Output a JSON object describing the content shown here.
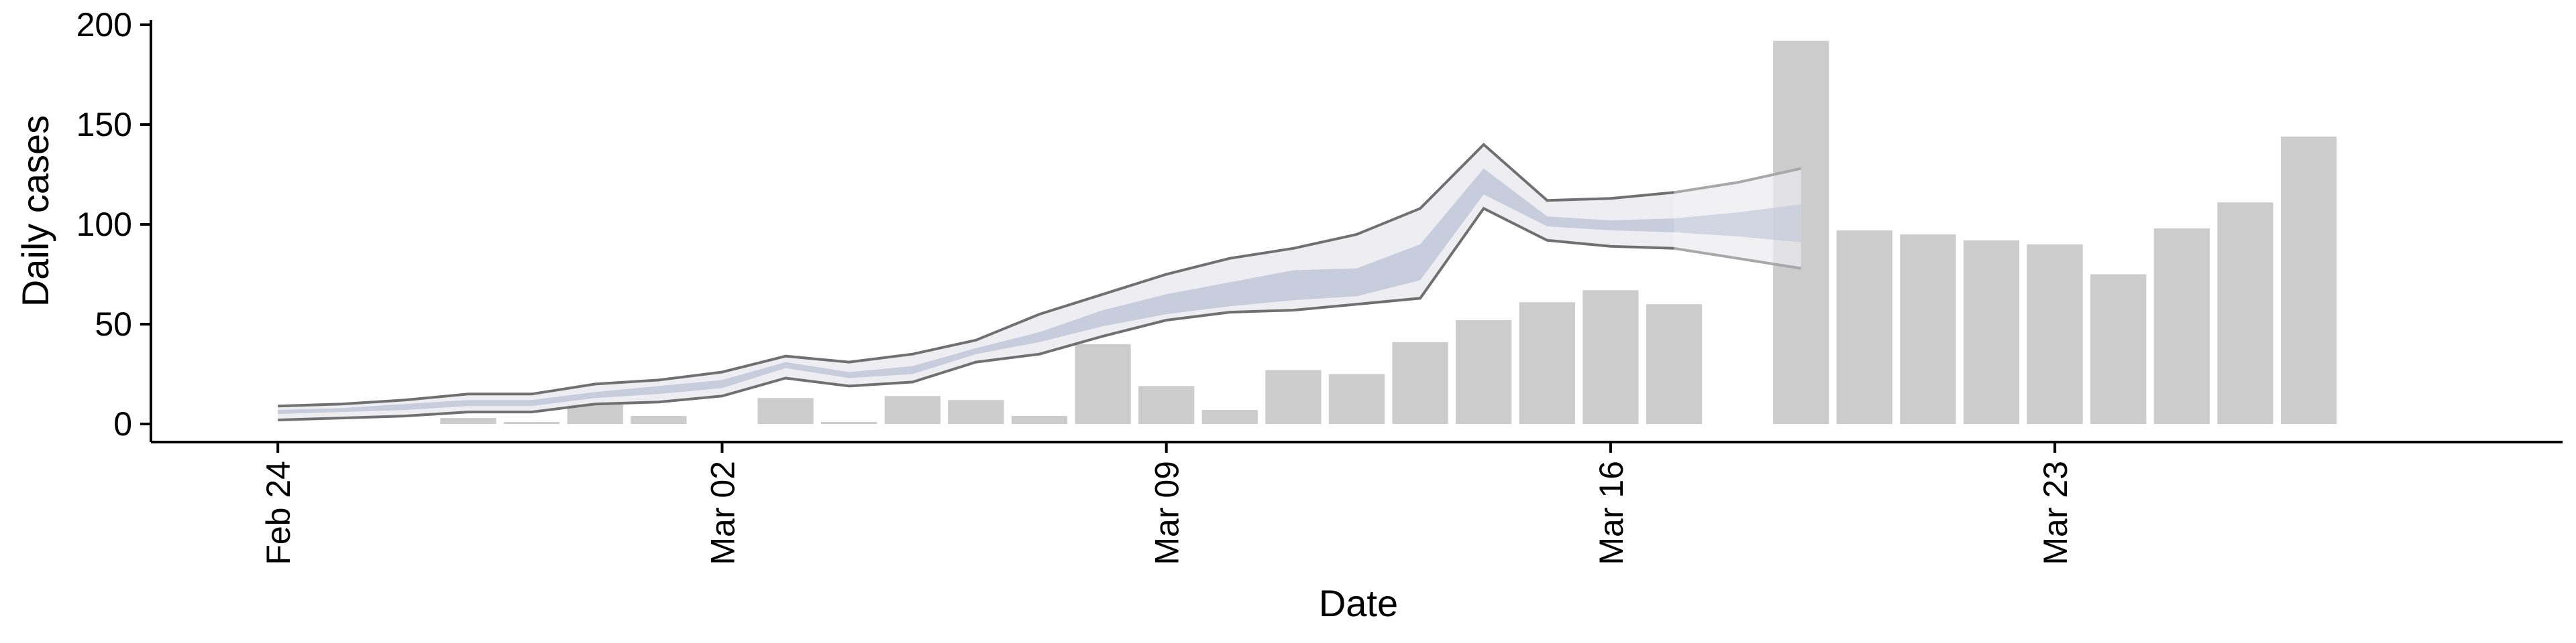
{
  "chart_data": {
    "type": "bar",
    "xlabel": "Date",
    "ylabel": "Daily cases",
    "ylim": [
      0,
      200
    ],
    "yticks": [
      0,
      50,
      100,
      150,
      200
    ],
    "xlim": [
      "2020-02-22",
      "2020-03-31"
    ],
    "xticks": [
      {
        "date": "2020-02-24",
        "label": "Feb 24"
      },
      {
        "date": "2020-03-02",
        "label": "Mar 02"
      },
      {
        "date": "2020-03-09",
        "label": "Mar 09"
      },
      {
        "date": "2020-03-16",
        "label": "Mar 16"
      },
      {
        "date": "2020-03-23",
        "label": "Mar 23"
      }
    ],
    "colors": {
      "bars": "#cccccc",
      "outer_band": "#ebebf0",
      "inner_band": "#c5cadc",
      "band_edge": "#707070",
      "forecast_edge": "#a8a8a8"
    },
    "bars": {
      "dates": [
        "2020-02-27",
        "2020-02-28",
        "2020-02-29",
        "2020-03-01",
        "2020-03-03",
        "2020-03-04",
        "2020-03-05",
        "2020-03-06",
        "2020-03-07",
        "2020-03-08",
        "2020-03-09",
        "2020-03-10",
        "2020-03-11",
        "2020-03-12",
        "2020-03-13",
        "2020-03-14",
        "2020-03-15",
        "2020-03-16",
        "2020-03-17",
        "2020-03-19",
        "2020-03-20",
        "2020-03-21",
        "2020-03-22",
        "2020-03-23",
        "2020-03-24",
        "2020-03-25",
        "2020-03-26",
        "2020-03-27"
      ],
      "values": [
        3,
        1,
        10,
        4,
        13,
        1,
        14,
        12,
        4,
        40,
        19,
        7,
        27,
        25,
        41,
        52,
        61,
        67,
        60,
        192,
        97,
        95,
        92,
        90,
        75,
        98,
        111,
        144
      ]
    },
    "nowcast": {
      "dates": [
        "2020-02-24",
        "2020-02-25",
        "2020-02-26",
        "2020-02-27",
        "2020-02-28",
        "2020-02-29",
        "2020-03-01",
        "2020-03-02",
        "2020-03-03",
        "2020-03-04",
        "2020-03-05",
        "2020-03-06",
        "2020-03-07",
        "2020-03-08",
        "2020-03-09",
        "2020-03-10",
        "2020-03-11",
        "2020-03-12",
        "2020-03-13",
        "2020-03-14",
        "2020-03-15",
        "2020-03-16",
        "2020-03-17"
      ],
      "lower90": [
        2,
        3,
        4,
        6,
        6,
        10,
        11,
        14,
        23,
        19,
        21,
        31,
        35,
        44,
        52,
        56,
        57,
        60,
        63,
        108,
        92,
        89,
        88
      ],
      "lower50": [
        5,
        6,
        7,
        9,
        9,
        13,
        15,
        18,
        28,
        23,
        25,
        35,
        41,
        49,
        55,
        59,
        62,
        64,
        72,
        115,
        99,
        97,
        96
      ],
      "upper50": [
        7,
        8,
        10,
        12,
        12,
        16,
        19,
        22,
        31,
        26,
        29,
        38,
        46,
        57,
        65,
        71,
        77,
        78,
        90,
        128,
        104,
        102,
        103
      ],
      "upper90": [
        9,
        10,
        12,
        15,
        15,
        20,
        22,
        26,
        34,
        31,
        35,
        42,
        55,
        65,
        75,
        83,
        88,
        95,
        108,
        140,
        112,
        113,
        116
      ]
    },
    "forecast": {
      "dates": [
        "2020-03-17",
        "2020-03-18",
        "2020-03-19"
      ],
      "lower90": [
        88,
        83,
        78
      ],
      "lower50": [
        96,
        94,
        91
      ],
      "upper50": [
        103,
        106,
        110
      ],
      "upper90": [
        116,
        121,
        128
      ]
    }
  }
}
